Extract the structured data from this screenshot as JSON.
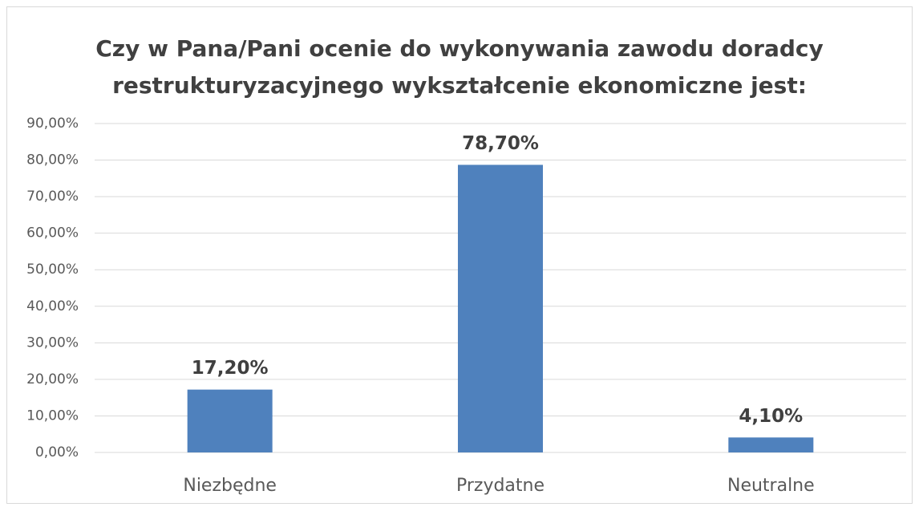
{
  "chart_data": {
    "type": "bar",
    "title": [
      "Czy w Pana/Pani ocenie do wykonywania zawodu doradcy",
      "restrukturyzacyjnego wykształcenie ekonomiczne jest:"
    ],
    "categories": [
      "Niezbędne",
      "Przydatne",
      "Neutralne"
    ],
    "values": [
      17.2,
      78.7,
      4.1
    ],
    "value_labels": [
      "17,20%",
      "78,70%",
      "4,10%"
    ],
    "color": "#4f81bd",
    "ylim": [
      0,
      90
    ],
    "yticks": [
      {
        "value": 0,
        "label": "0,00%"
      },
      {
        "value": 10,
        "label": "10,00%"
      },
      {
        "value": 20,
        "label": "20,00%"
      },
      {
        "value": 30,
        "label": "30,00%"
      },
      {
        "value": 40,
        "label": "40,00%"
      },
      {
        "value": 50,
        "label": "50,00%"
      },
      {
        "value": 60,
        "label": "60,00%"
      },
      {
        "value": 70,
        "label": "70,00%"
      },
      {
        "value": 80,
        "label": "80,00%"
      },
      {
        "value": 90,
        "label": "90,00%"
      }
    ],
    "grid": true
  }
}
